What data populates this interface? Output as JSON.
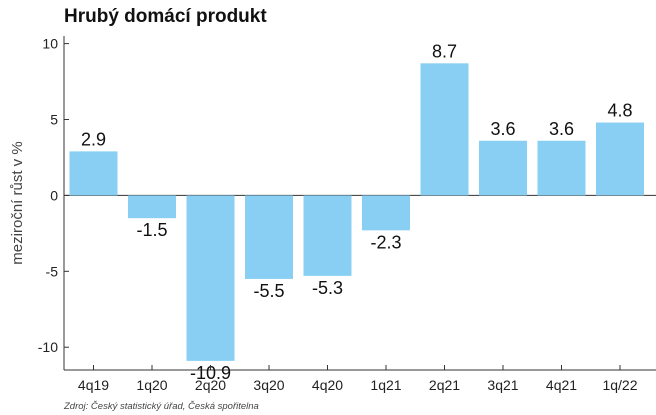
{
  "chart_data": {
    "type": "bar",
    "title": "Hrubý domácí produkt",
    "ylabel": "meziroční růst v %",
    "xlabel": "",
    "source": "Zdroj: Český statistický úřad, Česká spořitelna",
    "categories": [
      "4q19",
      "1q20",
      "2q20",
      "3q20",
      "4q20",
      "1q21",
      "2q21",
      "3q21",
      "4q21",
      "1q/22"
    ],
    "values": [
      2.9,
      -1.5,
      -10.9,
      -5.5,
      -5.3,
      -2.3,
      8.7,
      3.6,
      3.6,
      4.8
    ],
    "data_labels": [
      "2.9",
      "-1.5",
      "-10.9",
      "-5.5",
      "-5.3",
      "-2.3",
      "8.7",
      "3.6",
      "3.6",
      "4.8"
    ],
    "ylim": [
      -11.5,
      10.5
    ],
    "yticks": [
      10,
      5,
      0,
      -5,
      -10
    ],
    "ytick_labels": [
      "10",
      "5",
      "0",
      "-5",
      "-10"
    ],
    "grid": false,
    "bar_color": "#88CFF3",
    "axis_color": "#333333"
  }
}
